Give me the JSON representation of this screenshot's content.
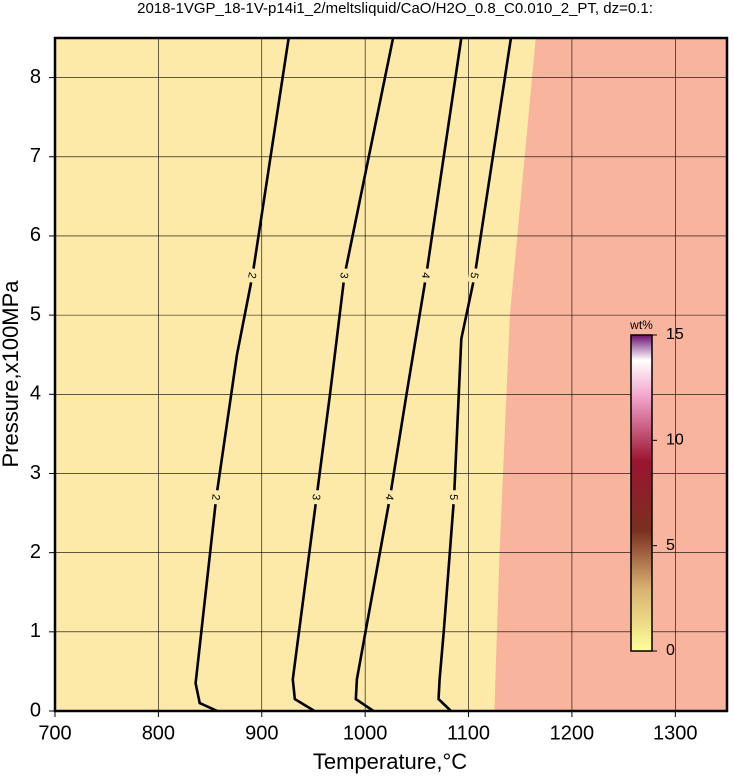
{
  "chart_data": {
    "type": "contour",
    "title": "2018-1VGP_18-1V-p14i1_2/meltsliquid/CaO/H2O_0.8_C0.010_2_PT, dz=0.1:",
    "xlabel": "Temperature,°C",
    "ylabel": "Pressure,x100MPa",
    "xlim": [
      700,
      1350
    ],
    "ylim": [
      0,
      8.5
    ],
    "xticks": [
      700,
      800,
      900,
      1000,
      1100,
      1200,
      1300
    ],
    "yticks": [
      0,
      1,
      2,
      3,
      4,
      5,
      6,
      7,
      8
    ],
    "grid": true,
    "background_color": "#fde9a8",
    "region": {
      "color": "#f8b49c",
      "x": [
        1125,
        1130,
        1140,
        1165,
        1350,
        1350
      ],
      "y": [
        0,
        2,
        5,
        8.5,
        8.5,
        0
      ]
    },
    "contours": [
      {
        "level": 2,
        "x": [
          857,
          840,
          836,
          856,
          876,
          891,
          926
        ],
        "y": [
          0,
          0.1,
          0.35,
          2.7,
          4.5,
          5.5,
          8.5
        ]
      },
      {
        "level": 3,
        "x": [
          951,
          932,
          930,
          953,
          966,
          980,
          1027
        ],
        "y": [
          0,
          0.15,
          0.4,
          2.7,
          4.0,
          5.5,
          8.5
        ]
      },
      {
        "level": 4,
        "x": [
          1008,
          991,
          992,
          1024,
          1040,
          1059,
          1093
        ],
        "y": [
          0,
          0.15,
          0.4,
          2.7,
          4.0,
          5.5,
          8.5
        ]
      },
      {
        "level": 5,
        "x": [
          1083,
          1071,
          1072,
          1076,
          1086,
          1093,
          1106,
          1141
        ],
        "y": [
          0,
          0.15,
          0.4,
          1.0,
          2.7,
          4.7,
          5.5,
          8.5
        ]
      }
    ],
    "colorbar": {
      "title": "wt%",
      "lim": [
        0,
        15
      ],
      "ticks": [
        0,
        5,
        10,
        15
      ]
    }
  }
}
